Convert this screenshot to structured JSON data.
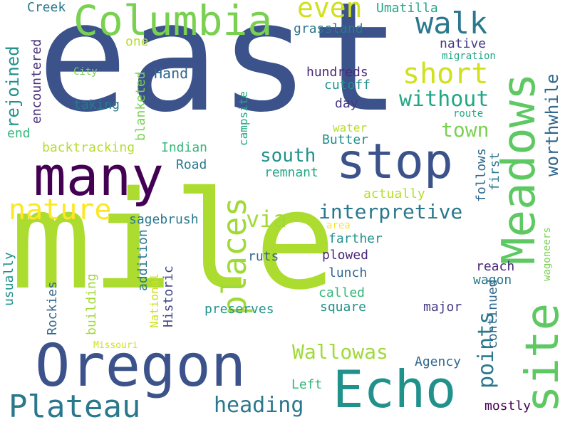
{
  "words": [
    {
      "text": "east",
      "color": "#3b528b",
      "rotated": false
    },
    {
      "text": "mile",
      "color": "#addc30",
      "rotated": false
    },
    {
      "text": "Oregon",
      "color": "#3b528b",
      "rotated": false
    },
    {
      "text": "Echo",
      "color": "#21918c",
      "rotated": false
    },
    {
      "text": "many",
      "color": "#440154",
      "rotated": false
    },
    {
      "text": "Meadows",
      "color": "#5ec962",
      "rotated": true
    },
    {
      "text": "site",
      "color": "#5ec962",
      "rotated": true
    },
    {
      "text": "Columbia",
      "color": "#7ad151",
      "rotated": false
    },
    {
      "text": "stop",
      "color": "#3b528b",
      "rotated": false
    },
    {
      "text": "places",
      "color": "#a0da39",
      "rotated": true
    },
    {
      "text": "Plateau",
      "color": "#2a788e",
      "rotated": false
    },
    {
      "text": "nature",
      "color": "#fde725",
      "rotated": false
    },
    {
      "text": "walk",
      "color": "#2a788e",
      "rotated": false
    },
    {
      "text": "even",
      "color": "#d0e11c",
      "rotated": false
    },
    {
      "text": "short",
      "color": "#d0e11c",
      "rotated": false
    },
    {
      "text": "interpretive",
      "color": "#2a788e",
      "rotated": false
    },
    {
      "text": "heading",
      "color": "#2a788e",
      "rotated": false
    },
    {
      "text": "Wallowas",
      "color": "#a0da39",
      "rotated": false
    },
    {
      "text": "without",
      "color": "#22a884",
      "rotated": false
    },
    {
      "text": "worthwhile",
      "color": "#31688e",
      "rotated": true
    },
    {
      "text": "south",
      "color": "#21918c",
      "rotated": false
    },
    {
      "text": "via",
      "color": "#a0da39",
      "rotated": false
    },
    {
      "text": "town",
      "color": "#7ad151",
      "rotated": false
    },
    {
      "text": "points",
      "color": "#2a788e",
      "rotated": true
    },
    {
      "text": "rejoined",
      "color": "#21918c",
      "rotated": true
    },
    {
      "text": "Umatilla",
      "color": "#22a884",
      "rotated": false
    },
    {
      "text": "grassland",
      "color": "#2a788e",
      "rotated": false
    },
    {
      "text": "Creek",
      "color": "#2a788e",
      "rotated": false
    },
    {
      "text": "native",
      "color": "#443a83",
      "rotated": false
    },
    {
      "text": "migration",
      "color": "#22a884",
      "rotated": false
    },
    {
      "text": "one",
      "color": "#b5de2b",
      "rotated": false
    },
    {
      "text": "encountered",
      "color": "#472d7b",
      "rotated": true
    },
    {
      "text": "City",
      "color": "#7ad151",
      "rotated": false
    },
    {
      "text": "Hand",
      "color": "#31688e",
      "rotated": false
    },
    {
      "text": "hundreds",
      "color": "#482878",
      "rotated": false
    },
    {
      "text": "cutoff",
      "color": "#21918c",
      "rotated": false
    },
    {
      "text": "taking",
      "color": "#2a788e",
      "rotated": false
    },
    {
      "text": "day",
      "color": "#443a83",
      "rotated": false
    },
    {
      "text": "route",
      "color": "#22a884",
      "rotated": false
    },
    {
      "text": "blanketed",
      "color": "#7ad151",
      "rotated": true
    },
    {
      "text": "campsite",
      "color": "#22a884",
      "rotated": true
    },
    {
      "text": "end",
      "color": "#35b779",
      "rotated": false
    },
    {
      "text": "water",
      "color": "#b5de2b",
      "rotated": false
    },
    {
      "text": "Butter",
      "color": "#21918c",
      "rotated": false
    },
    {
      "text": "backtracking",
      "color": "#b5de2b",
      "rotated": false
    },
    {
      "text": "Indian",
      "color": "#35b779",
      "rotated": false
    },
    {
      "text": "Road",
      "color": "#2a788e",
      "rotated": false
    },
    {
      "text": "remnant",
      "color": "#22a884",
      "rotated": false
    },
    {
      "text": "follows",
      "color": "#31688e",
      "rotated": true
    },
    {
      "text": "first",
      "color": "#2a788e",
      "rotated": true
    },
    {
      "text": "actually",
      "color": "#b5de2b",
      "rotated": false
    },
    {
      "text": "sagebrush",
      "color": "#2a788e",
      "rotated": false
    },
    {
      "text": "area",
      "color": "#fde725",
      "rotated": false
    },
    {
      "text": "farther",
      "color": "#21918c",
      "rotated": false
    },
    {
      "text": "addition",
      "color": "#2a788e",
      "rotated": true
    },
    {
      "text": "plowed",
      "color": "#482878",
      "rotated": false
    },
    {
      "text": "ruts",
      "color": "#31688e",
      "rotated": false
    },
    {
      "text": "reach",
      "color": "#482878",
      "rotated": false
    },
    {
      "text": "usually",
      "color": "#21918c",
      "rotated": true
    },
    {
      "text": "lunch",
      "color": "#31688e",
      "rotated": false
    },
    {
      "text": "wagoneers",
      "color": "#7ad151",
      "rotated": true
    },
    {
      "text": "Rockies",
      "color": "#31688e",
      "rotated": true
    },
    {
      "text": "National",
      "color": "#d0e11c",
      "rotated": true
    },
    {
      "text": "Historic",
      "color": "#414487",
      "rotated": true
    },
    {
      "text": "building",
      "color": "#a0da39",
      "rotated": true
    },
    {
      "text": "wagon",
      "color": "#2a788e",
      "rotated": false
    },
    {
      "text": "called",
      "color": "#35b779",
      "rotated": false
    },
    {
      "text": "square",
      "color": "#21918c",
      "rotated": false
    },
    {
      "text": "preserves",
      "color": "#21918c",
      "rotated": false
    },
    {
      "text": "major",
      "color": "#443a83",
      "rotated": false
    },
    {
      "text": "continued",
      "color": "#31688e",
      "rotated": true
    },
    {
      "text": "Missouri",
      "color": "#d0e11c",
      "rotated": false
    },
    {
      "text": "Agency",
      "color": "#31688e",
      "rotated": false
    },
    {
      "text": "Left",
      "color": "#35b779",
      "rotated": false
    },
    {
      "text": "mostly",
      "color": "#440154",
      "rotated": false
    }
  ]
}
